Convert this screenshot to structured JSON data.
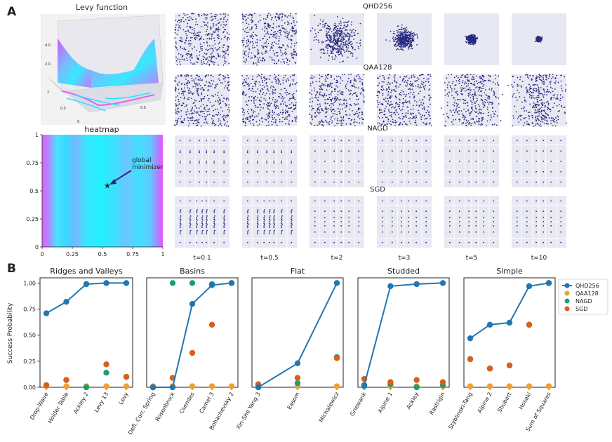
{
  "panel_labels": {
    "a": "A",
    "b": "B"
  },
  "panel_a": {
    "surface_title": "Levy function",
    "surface_ticks": [
      "4.0",
      "2.0",
      "1",
      "0.5",
      "0",
      "0.5"
    ],
    "heatmap_title": "heatmap",
    "heatmap_ticks": [
      "0",
      "0.25",
      "0.5",
      "0.75",
      "1"
    ],
    "annotation": [
      "global",
      "minimizer"
    ],
    "rows": [
      {
        "label": "QHD256",
        "kind": "converge",
        "spreads": [
          1.0,
          1.0,
          0.45,
          0.22,
          0.09,
          0.05
        ]
      },
      {
        "label": "QAA128",
        "kind": "uniform",
        "spreads": [
          1.0,
          1.0,
          1.0,
          1.0,
          0.95,
          0.6
        ]
      },
      {
        "label": "NAGD",
        "kind": "grid_sparse",
        "spreads": [
          1,
          1,
          1,
          1,
          1,
          1
        ]
      },
      {
        "label": "SGD",
        "kind": "grid_columns",
        "spreads": [
          1,
          1,
          1,
          1,
          1,
          1
        ]
      }
    ],
    "time_labels": [
      "t=0.1",
      "t=0.5",
      "t=2",
      "t=3",
      "t=5",
      "t=10"
    ]
  },
  "chart_data": {
    "type": "scatter",
    "ylabel": "Success Probability",
    "ylim": [
      0,
      1.05
    ],
    "yticks": [
      "0.00",
      "0.25",
      "0.50",
      "0.75",
      "1.00"
    ],
    "legend_position": "right",
    "colors": {
      "QHD256": "#1f77b4",
      "QAA128": "#f0a030",
      "NAGD": "#1a9e77",
      "SGD": "#d95f1a"
    },
    "series_names": [
      "QHD256",
      "QAA128",
      "NAGD",
      "SGD"
    ],
    "groups": [
      {
        "title": "Ridges and Valleys",
        "categories": [
          "Drop-Wave",
          "Holder Table",
          "Ackley 2",
          "Levy 13",
          "Levy"
        ],
        "QHD256": [
          0.71,
          0.82,
          0.99,
          1.0,
          1.0
        ],
        "QAA128": [
          0.01,
          0.01,
          0.01,
          0.01,
          0.01
        ],
        "NAGD": [
          0.02,
          0.07,
          0.0,
          0.14,
          0.1
        ],
        "SGD": [
          0.02,
          0.07,
          0.99,
          0.22,
          0.1
        ]
      },
      {
        "title": "Basins",
        "categories": [
          "Defl. Corr. Spring",
          "Rosenbrock",
          "Csendes",
          "Camel 3",
          "Bohachevsky 2"
        ],
        "QHD256": [
          0.0,
          0.0,
          0.8,
          0.98,
          1.0
        ],
        "QAA128": [
          0.01,
          0.01,
          0.01,
          0.01,
          0.01
        ],
        "NAGD": [
          0.0,
          1.0,
          1.0,
          0.99,
          1.0
        ],
        "SGD": [
          0.0,
          0.09,
          0.33,
          0.6,
          1.0
        ]
      },
      {
        "title": "Flat",
        "categories": [
          "Xin-She Yang 3",
          "Easom",
          "Michalewicz"
        ],
        "QHD256": [
          0.0,
          0.23,
          1.0
        ],
        "QAA128": [
          0.0,
          0.01,
          0.01
        ],
        "NAGD": [
          0.02,
          0.04,
          0.29
        ],
        "SGD": [
          0.03,
          0.09,
          0.28
        ]
      },
      {
        "title": "Studded",
        "categories": [
          "Griewank",
          "Alpine 1",
          "Ackley",
          "Rastrigin"
        ],
        "QHD256": [
          0.02,
          0.97,
          0.99,
          1.0
        ],
        "QAA128": [
          0.01,
          0.01,
          0.01,
          0.01
        ],
        "NAGD": [
          0.01,
          0.03,
          0.0,
          0.02
        ],
        "SGD": [
          0.08,
          0.05,
          0.07,
          0.05
        ]
      },
      {
        "title": "Simple",
        "categories": [
          "Styblinski-Tang",
          "Alpine 2",
          "Shubert",
          "Hosaki",
          "Sum of Squares"
        ],
        "QHD256": [
          0.47,
          0.6,
          0.62,
          0.97,
          1.0
        ],
        "QAA128": [
          0.01,
          0.01,
          0.01,
          0.01,
          0.01
        ],
        "NAGD": [
          0.27,
          0.18,
          0.21,
          0.6,
          1.0
        ],
        "SGD": [
          0.27,
          0.18,
          0.21,
          0.6,
          1.0
        ]
      }
    ]
  }
}
